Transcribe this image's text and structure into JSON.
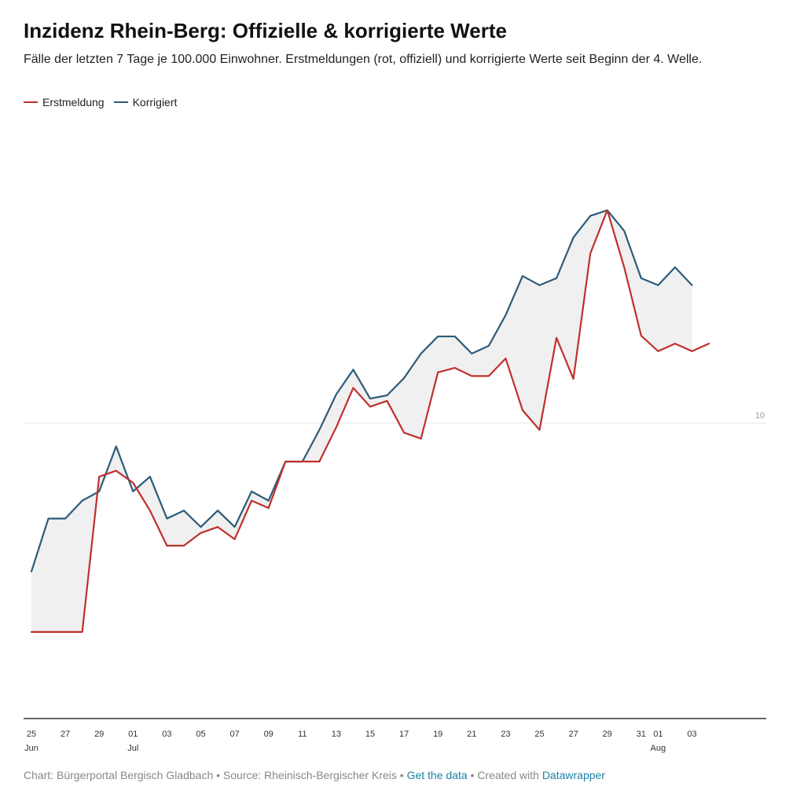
{
  "chart_data": {
    "type": "line",
    "title": "Inzidenz Rhein-Berg: Offizielle & korrigierte Werte",
    "subtitle": "Fälle der letzten 7 Tage je 100.000 Einwohner. Erstmeldungen (rot, offiziell) und korrigierte Werte seit Beginn der 4. Welle.",
    "xlabel": "",
    "ylabel": "",
    "y_scale": "log",
    "ylim": [
      1.1,
      100
    ],
    "x": [
      "2021-06-25",
      "2021-06-26",
      "2021-06-27",
      "2021-06-28",
      "2021-06-29",
      "2021-06-30",
      "2021-07-01",
      "2021-07-02",
      "2021-07-03",
      "2021-07-04",
      "2021-07-05",
      "2021-07-06",
      "2021-07-07",
      "2021-07-08",
      "2021-07-09",
      "2021-07-10",
      "2021-07-11",
      "2021-07-12",
      "2021-07-13",
      "2021-07-14",
      "2021-07-15",
      "2021-07-16",
      "2021-07-17",
      "2021-07-18",
      "2021-07-19",
      "2021-07-20",
      "2021-07-21",
      "2021-07-22",
      "2021-07-23",
      "2021-07-24",
      "2021-07-25",
      "2021-07-26",
      "2021-07-27",
      "2021-07-28",
      "2021-07-29",
      "2021-07-30",
      "2021-07-31",
      "2021-08-01",
      "2021-08-02",
      "2021-08-03",
      "2021-08-04"
    ],
    "series": [
      {
        "name": "Erstmeldung",
        "color": "#c0302b",
        "values": [
          2.1,
          2.1,
          2.1,
          2.1,
          6.7,
          7.0,
          6.4,
          5.2,
          4.0,
          4.0,
          4.4,
          4.6,
          4.2,
          5.6,
          5.3,
          7.5,
          7.5,
          7.5,
          9.7,
          13.0,
          11.3,
          11.8,
          9.3,
          8.9,
          14.6,
          15.1,
          14.2,
          14.2,
          16.2,
          11.0,
          9.5,
          18.9,
          13.9,
          35.5,
          49.0,
          32.0,
          19.2,
          17.1,
          18.1,
          17.1,
          18.1
        ]
      },
      {
        "name": "Korrigiert",
        "color": "#2c5b7a",
        "values": [
          3.3,
          4.9,
          4.9,
          5.6,
          6.0,
          8.4,
          6.0,
          6.7,
          4.9,
          5.2,
          4.6,
          5.2,
          4.6,
          6.0,
          5.6,
          7.5,
          7.5,
          9.5,
          12.4,
          14.9,
          12.0,
          12.3,
          14.0,
          16.8,
          19.1,
          19.1,
          16.8,
          17.8,
          22.4,
          30.0,
          28.0,
          29.5,
          40.0,
          47.0,
          49.0,
          42.0,
          29.5,
          28.0,
          32.0,
          28.0,
          null
        ]
      }
    ],
    "y_ticks": [
      {
        "value": 10,
        "label": "10"
      }
    ],
    "x_ticks": [
      {
        "index": 0,
        "label": "25",
        "sublabel": "Jun"
      },
      {
        "index": 2,
        "label": "27"
      },
      {
        "index": 4,
        "label": "29"
      },
      {
        "index": 6,
        "label": "01",
        "sublabel": "Jul"
      },
      {
        "index": 8,
        "label": "03"
      },
      {
        "index": 10,
        "label": "05"
      },
      {
        "index": 12,
        "label": "07"
      },
      {
        "index": 14,
        "label": "09"
      },
      {
        "index": 16,
        "label": "11"
      },
      {
        "index": 18,
        "label": "13"
      },
      {
        "index": 20,
        "label": "15"
      },
      {
        "index": 22,
        "label": "17"
      },
      {
        "index": 24,
        "label": "19"
      },
      {
        "index": 26,
        "label": "21"
      },
      {
        "index": 28,
        "label": "23"
      },
      {
        "index": 30,
        "label": "25"
      },
      {
        "index": 32,
        "label": "27"
      },
      {
        "index": 34,
        "label": "29"
      },
      {
        "index": 36,
        "label": "31"
      },
      {
        "index": 37,
        "label": "01",
        "sublabel": "Aug"
      },
      {
        "index": 39,
        "label": "03"
      }
    ],
    "fill_between": true,
    "fill_color": "#f0f0f0",
    "grid": true,
    "legend_position": "top-left"
  },
  "legend": {
    "items": [
      {
        "label": "Erstmeldung",
        "color": "#c0302b"
      },
      {
        "label": "Korrigiert",
        "color": "#2c5b7a"
      }
    ]
  },
  "footer": {
    "chart_text": "Chart: Bürgerportal Bergisch Gladbach • Source: Rheinisch-Bergischer Kreis • ",
    "get_data": "Get the data",
    "separator": " • Created with ",
    "datawrapper": "Datawrapper"
  }
}
